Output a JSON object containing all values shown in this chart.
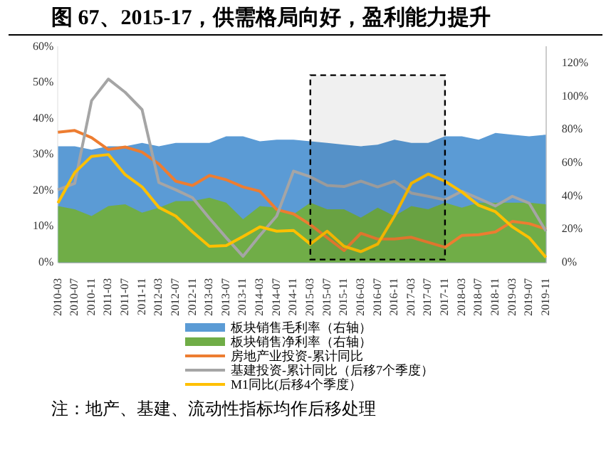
{
  "chart_data": {
    "type": "line",
    "title": "图 67、2015-17，供需格局向好，盈利能力提升",
    "categories": [
      "2010-03",
      "2010-07",
      "2010-11",
      "2011-03",
      "2011-07",
      "2011-11",
      "2012-03",
      "2012-07",
      "2012-11",
      "2013-03",
      "2013-07",
      "2013-11",
      "2014-03",
      "2014-07",
      "2014-11",
      "2015-03",
      "2015-07",
      "2015-11",
      "2016-03",
      "2016-07",
      "2016-11",
      "2017-03",
      "2017-07",
      "2017-11",
      "2018-03",
      "2018-07",
      "2018-11",
      "2019-03",
      "2019-07",
      "2019-11"
    ],
    "series": [
      {
        "name": "板块销售毛利率（右轴）",
        "type": "area",
        "axis": "y2",
        "color": "#5b9bd5",
        "values": [
          70,
          70,
          68,
          70,
          70,
          72,
          70,
          72,
          72,
          72,
          76,
          76,
          73,
          74,
          74,
          73,
          72,
          71,
          70,
          71,
          74,
          72,
          72,
          76,
          76,
          74,
          78,
          77,
          76,
          77
        ]
      },
      {
        "name": "板块销售净利率（右轴）",
        "type": "area",
        "axis": "y2",
        "color": "#70ad47",
        "values": [
          34,
          32,
          28,
          34,
          35,
          30,
          33,
          37,
          37,
          39,
          36,
          26,
          34,
          33,
          29,
          36,
          32,
          32,
          27,
          33,
          28,
          34,
          32,
          36,
          33,
          36,
          36,
          36,
          36,
          35
        ]
      },
      {
        "name": "房地产业投资-累计同比",
        "color": "#ed7d31",
        "values": [
          36.2,
          36.7,
          34.7,
          31.4,
          32.1,
          30.7,
          27.4,
          22.6,
          21.4,
          24.2,
          23,
          21,
          19.8,
          14.7,
          13.5,
          10.5,
          6.9,
          3.3,
          8.1,
          6.5,
          6.5,
          7,
          5.6,
          4.2,
          7.5,
          7.7,
          8.5,
          11.4,
          10.8,
          9.3
        ]
      },
      {
        "name": "基建投资-累计同比（后移7个季度）",
        "color": "#a5a5a5",
        "values": [
          20.2,
          22,
          45,
          51,
          47.3,
          42.5,
          22.2,
          20.2,
          18,
          12.3,
          6.9,
          1.7,
          7.5,
          12.9,
          25.4,
          23.8,
          21.4,
          21.1,
          22.6,
          21,
          22.6,
          19.3,
          18.4,
          17.4,
          19.8,
          17.8,
          15.7,
          18.4,
          16.5,
          8.7
        ]
      },
      {
        "name": "M1同比(后移4个季度）",
        "color": "#ffc000",
        "values": [
          16.5,
          25,
          29.5,
          30,
          24.4,
          21,
          15.3,
          12.9,
          8.5,
          4.5,
          4.7,
          7.2,
          9.9,
          8.7,
          8.9,
          5.1,
          8.7,
          4.5,
          3,
          5.1,
          12.9,
          22,
          24.6,
          22.6,
          19.6,
          15.9,
          14.1,
          9.9,
          6.9,
          1.4
        ]
      }
    ],
    "ylim": [
      0,
      60
    ],
    "yticks": [
      {
        "value": 0,
        "label": "0%"
      },
      {
        "value": 10,
        "label": "10%"
      },
      {
        "value": 20,
        "label": "20%"
      },
      {
        "value": 30,
        "label": "30%"
      },
      {
        "value": 40,
        "label": "40%"
      },
      {
        "value": 50,
        "label": "50%"
      },
      {
        "value": 60,
        "label": "60%"
      }
    ],
    "y2lim": [
      0,
      130
    ],
    "y2ticks": [
      {
        "value": 0,
        "label": "0%"
      },
      {
        "value": 20,
        "label": "20%"
      },
      {
        "value": 40,
        "label": "40%"
      },
      {
        "value": 60,
        "label": "60%"
      },
      {
        "value": 80,
        "label": "80%"
      },
      {
        "value": 100,
        "label": "100%"
      },
      {
        "value": 120,
        "label": "120%"
      }
    ],
    "bands": [
      {
        "axis": "x",
        "from": "2015-03",
        "to": "2017-11",
        "color": "#000000"
      }
    ],
    "legend": "bottom",
    "annotations": [
      "注：地产、基建、流动性指标均作后移处理"
    ]
  }
}
